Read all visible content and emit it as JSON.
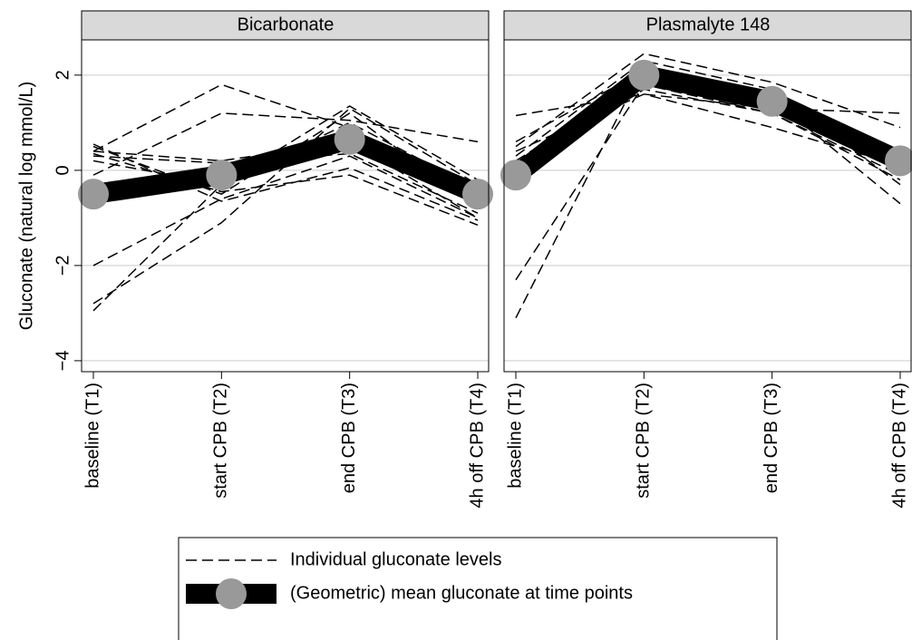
{
  "chart_data": {
    "type": "line",
    "ylabel": "Gluconate (natural log mmol/L)",
    "categories": [
      "baseline (T1)",
      "start CPB (T2)",
      "end CPB (T3)",
      "4h off CPB (T4)"
    ],
    "ylim": [
      -4.23,
      2.74
    ],
    "yticks": [
      {
        "value": -4,
        "label": "−4"
      },
      {
        "value": -2,
        "label": "−2"
      },
      0,
      2
    ],
    "grid": true,
    "individual_name": "Individual gluconate levels",
    "mean_name": "(Geometric) mean gluconate at time points",
    "individual_color": "#000000",
    "mean_color": "#000000",
    "marker_color": "#999999",
    "panels": [
      {
        "title": "Bicarbonate",
        "individual": [
          [
            0.5,
            -0.5,
            1.2,
            -0.8
          ],
          [
            0.4,
            1.8,
            0.9,
            -0.7
          ],
          [
            -0.1,
            1.2,
            1.05,
            0.6
          ],
          [
            -2.0,
            -0.6,
            0.3,
            -1.0
          ],
          [
            -2.8,
            -1.1,
            1.3,
            -0.3
          ],
          [
            -2.95,
            -0.3,
            1.0,
            -0.4
          ],
          [
            0.3,
            0.15,
            0.35,
            -0.9
          ],
          [
            0.35,
            -0.45,
            -0.1,
            -1.15
          ],
          [
            0.55,
            -0.65,
            0.05,
            -1.05
          ],
          [
            0.2,
            -0.3,
            1.35,
            -0.2
          ],
          [
            0.4,
            0.2,
            0.6,
            -1.0
          ]
        ],
        "mean": [
          -0.5,
          -0.1,
          0.65,
          -0.5
        ]
      },
      {
        "title": "Plasmalyte 148",
        "individual": [
          [
            1.15,
            1.6,
            1.3,
            1.2
          ],
          [
            0.5,
            2.45,
            1.85,
            0.9
          ],
          [
            -2.3,
            1.8,
            1.2,
            -0.2
          ],
          [
            -3.1,
            2.2,
            1.5,
            -0.7
          ],
          [
            0.3,
            2.3,
            1.7,
            -0.3
          ],
          [
            0.4,
            1.6,
            0.9,
            0.1
          ],
          [
            0.6,
            2.1,
            1.6,
            0.0
          ],
          [
            0.2,
            1.9,
            1.4,
            0.3
          ],
          [
            0.0,
            1.7,
            1.2,
            -0.1
          ]
        ],
        "mean": [
          -0.1,
          2.0,
          1.45,
          0.2
        ]
      }
    ]
  }
}
